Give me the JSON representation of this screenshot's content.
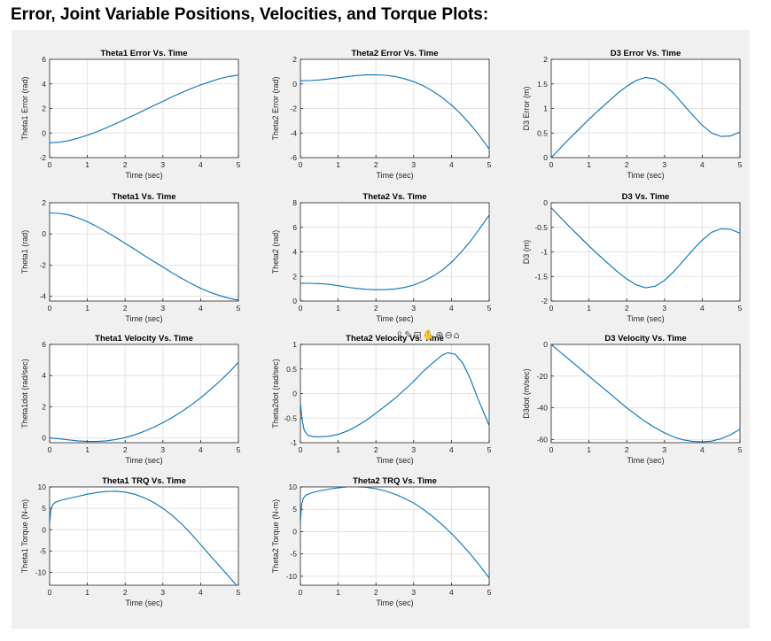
{
  "page": {
    "title": "Error, Joint Variable Positions, Velocities, and Torque Plots:"
  },
  "style": {
    "line_color": "#0072bd",
    "panel_bg": "#f0f0f0",
    "axes_bg": "#ffffff",
    "grid_color": "#e3e3e3"
  },
  "toolbar": {
    "icons": [
      {
        "name": "export-icon",
        "glyph": "⇪"
      },
      {
        "name": "brush-icon",
        "glyph": "✎"
      },
      {
        "name": "datatip-icon",
        "glyph": "⊟"
      },
      {
        "name": "pan-icon",
        "glyph": "✋"
      },
      {
        "name": "zoom-in-icon",
        "glyph": "⊕"
      },
      {
        "name": "zoom-out-icon",
        "glyph": "⊖"
      },
      {
        "name": "home-icon",
        "glyph": "⌂"
      }
    ]
  },
  "chart_data": [
    {
      "id": "theta1-error",
      "type": "line",
      "title": "Theta1 Error Vs. Time",
      "xlabel": "Time (sec)",
      "ylabel": "Theta1 Error (rad)",
      "xlim": [
        0,
        5
      ],
      "ylim": [
        -2,
        6
      ],
      "xticks": [
        0,
        1,
        2,
        3,
        4,
        5
      ],
      "yticks": [
        -2,
        0,
        2,
        4,
        6
      ],
      "grid": true,
      "x": [
        0,
        0.25,
        0.5,
        0.75,
        1,
        1.25,
        1.5,
        1.75,
        2,
        2.25,
        2.5,
        2.75,
        3,
        3.25,
        3.5,
        3.75,
        4,
        4.25,
        4.5,
        4.75,
        5
      ],
      "y": [
        -0.8,
        -0.75,
        -0.62,
        -0.42,
        -0.18,
        0.1,
        0.42,
        0.76,
        1.12,
        1.48,
        1.85,
        2.22,
        2.58,
        2.95,
        3.3,
        3.62,
        3.92,
        4.18,
        4.42,
        4.6,
        4.72
      ]
    },
    {
      "id": "theta2-error",
      "type": "line",
      "title": "Theta2 Error Vs. Time",
      "xlabel": "Time (sec)",
      "ylabel": "Theta2 Error (rad)",
      "xlim": [
        0,
        5
      ],
      "ylim": [
        -6,
        2
      ],
      "xticks": [
        0,
        1,
        2,
        3,
        4,
        5
      ],
      "yticks": [
        -6,
        -4,
        -2,
        0,
        2
      ],
      "grid": true,
      "x": [
        0,
        0.25,
        0.5,
        0.75,
        1,
        1.25,
        1.5,
        1.75,
        2,
        2.25,
        2.5,
        2.75,
        3,
        3.25,
        3.5,
        3.75,
        4,
        4.25,
        4.5,
        4.75,
        5
      ],
      "y": [
        0.25,
        0.27,
        0.32,
        0.4,
        0.5,
        0.6,
        0.68,
        0.73,
        0.74,
        0.7,
        0.6,
        0.43,
        0.18,
        -0.15,
        -0.58,
        -1.1,
        -1.72,
        -2.45,
        -3.3,
        -4.25,
        -5.3
      ]
    },
    {
      "id": "d3-error",
      "type": "line",
      "title": "D3 Error Vs. Time",
      "xlabel": "Time (sec)",
      "ylabel": "D3 Error (m)",
      "xlim": [
        0,
        5
      ],
      "ylim": [
        0,
        2
      ],
      "xticks": [
        0,
        1,
        2,
        3,
        4,
        5
      ],
      "yticks": [
        0,
        0.5,
        1,
        1.5,
        2
      ],
      "grid": true,
      "x": [
        0,
        0.25,
        0.5,
        0.75,
        1,
        1.25,
        1.5,
        1.75,
        2,
        2.25,
        2.5,
        2.75,
        3,
        3.25,
        3.5,
        3.75,
        4,
        4.25,
        4.5,
        4.75,
        5
      ],
      "y": [
        0,
        0.2,
        0.4,
        0.59,
        0.78,
        0.96,
        1.13,
        1.3,
        1.45,
        1.57,
        1.63,
        1.6,
        1.48,
        1.3,
        1.08,
        0.86,
        0.66,
        0.5,
        0.43,
        0.44,
        0.52
      ]
    },
    {
      "id": "theta1-pos",
      "type": "line",
      "title": "Theta1 Vs. Time",
      "xlabel": "Time (sec)",
      "ylabel": "Theta1 (rad)",
      "xlim": [
        0,
        5
      ],
      "ylim": [
        -4.3,
        2
      ],
      "xticks": [
        0,
        1,
        2,
        3,
        4,
        5
      ],
      "yticks": [
        -4,
        -2,
        0,
        2
      ],
      "grid": true,
      "x": [
        0,
        0.25,
        0.5,
        0.75,
        1,
        1.25,
        1.5,
        1.75,
        2,
        2.25,
        2.5,
        2.75,
        3,
        3.25,
        3.5,
        3.75,
        4,
        4.25,
        4.5,
        4.75,
        5
      ],
      "y": [
        1.35,
        1.32,
        1.22,
        1.03,
        0.78,
        0.48,
        0.14,
        -0.22,
        -0.6,
        -0.98,
        -1.37,
        -1.75,
        -2.12,
        -2.5,
        -2.85,
        -3.18,
        -3.48,
        -3.74,
        -3.95,
        -4.12,
        -4.25
      ]
    },
    {
      "id": "theta2-pos",
      "type": "line",
      "title": "Theta2 Vs. Time",
      "xlabel": "Time (sec)",
      "ylabel": "Theta2 (rad)",
      "xlim": [
        0,
        5
      ],
      "ylim": [
        0,
        8
      ],
      "xticks": [
        0,
        1,
        2,
        3,
        4,
        5
      ],
      "yticks": [
        0,
        2,
        4,
        6,
        8
      ],
      "grid": true,
      "x": [
        0,
        0.25,
        0.5,
        0.75,
        1,
        1.25,
        1.5,
        1.75,
        2,
        2.25,
        2.5,
        2.75,
        3,
        3.25,
        3.5,
        3.75,
        4,
        4.25,
        4.5,
        4.75,
        5
      ],
      "y": [
        1.45,
        1.44,
        1.42,
        1.36,
        1.25,
        1.12,
        1.02,
        0.95,
        0.92,
        0.93,
        0.98,
        1.1,
        1.3,
        1.6,
        2.0,
        2.5,
        3.15,
        3.95,
        4.85,
        5.9,
        7.0
      ]
    },
    {
      "id": "d3-pos",
      "type": "line",
      "title": "D3 Vs. Time",
      "xlabel": "Time (sec)",
      "ylabel": "D3 (m)",
      "xlim": [
        0,
        5
      ],
      "ylim": [
        -2,
        0
      ],
      "xticks": [
        0,
        1,
        2,
        3,
        4,
        5
      ],
      "yticks": [
        -2,
        -1.5,
        -1,
        -0.5,
        0
      ],
      "grid": true,
      "x": [
        0,
        0.25,
        0.5,
        0.75,
        1,
        1.25,
        1.5,
        1.75,
        2,
        2.25,
        2.5,
        2.75,
        3,
        3.25,
        3.5,
        3.75,
        4,
        4.25,
        4.5,
        4.75,
        5
      ],
      "y": [
        -0.1,
        -0.3,
        -0.5,
        -0.69,
        -0.88,
        -1.06,
        -1.23,
        -1.4,
        -1.55,
        -1.67,
        -1.73,
        -1.7,
        -1.58,
        -1.4,
        -1.18,
        -0.96,
        -0.76,
        -0.6,
        -0.53,
        -0.54,
        -0.62
      ]
    },
    {
      "id": "theta1-vel",
      "type": "line",
      "title": "Theta1 Velocity Vs. Time",
      "xlabel": "Time (sec)",
      "ylabel": "Theta1dot (rad/sec)",
      "xlim": [
        0,
        5
      ],
      "ylim": [
        -0.3,
        6
      ],
      "xticks": [
        0,
        1,
        2,
        3,
        4,
        5
      ],
      "yticks": [
        0,
        2,
        4,
        6
      ],
      "grid": true,
      "x": [
        0,
        0.25,
        0.5,
        0.75,
        1,
        1.25,
        1.5,
        1.75,
        2,
        2.25,
        2.5,
        2.75,
        3,
        3.25,
        3.5,
        3.75,
        4,
        4.25,
        4.5,
        4.75,
        5
      ],
      "y": [
        0,
        -0.05,
        -0.12,
        -0.18,
        -0.22,
        -0.22,
        -0.18,
        -0.1,
        0.03,
        0.2,
        0.42,
        0.68,
        0.98,
        1.32,
        1.7,
        2.12,
        2.58,
        3.08,
        3.62,
        4.2,
        4.85
      ]
    },
    {
      "id": "theta2-vel",
      "type": "line",
      "title": "Theta2 Velocity Vs. Time",
      "xlabel": "Time (sec)",
      "ylabel": "Theta2dot (rad/sec)",
      "xlim": [
        0,
        5
      ],
      "ylim": [
        -1,
        1
      ],
      "xticks": [
        0,
        1,
        2,
        3,
        4,
        5
      ],
      "yticks": [
        -1,
        -0.5,
        0,
        0.5,
        1
      ],
      "grid": true,
      "x": [
        0,
        0.05,
        0.1,
        0.2,
        0.35,
        0.5,
        0.75,
        1,
        1.25,
        1.5,
        1.75,
        2,
        2.25,
        2.5,
        2.75,
        3,
        3.25,
        3.5,
        3.75,
        3.9,
        4.1,
        4.3,
        4.5,
        4.7,
        5
      ],
      "y": [
        -0.2,
        -0.55,
        -0.75,
        -0.85,
        -0.88,
        -0.88,
        -0.87,
        -0.83,
        -0.76,
        -0.66,
        -0.54,
        -0.4,
        -0.25,
        -0.1,
        0.07,
        0.25,
        0.45,
        0.62,
        0.78,
        0.83,
        0.8,
        0.62,
        0.3,
        -0.1,
        -0.65
      ]
    },
    {
      "id": "d3-vel",
      "type": "line",
      "title": "D3 Velocity Vs. Time",
      "xlabel": "Time (sec)",
      "ylabel": "D3dot (m/sec)",
      "xlim": [
        0,
        5
      ],
      "ylim": [
        -62,
        0
      ],
      "xticks": [
        0,
        1,
        2,
        3,
        4,
        5
      ],
      "yticks": [
        -60,
        -40,
        -20,
        0
      ],
      "grid": true,
      "x": [
        0,
        0.25,
        0.5,
        0.75,
        1,
        1.25,
        1.5,
        1.75,
        2,
        2.25,
        2.5,
        2.75,
        3,
        3.25,
        3.5,
        3.75,
        4,
        4.25,
        4.5,
        4.75,
        5
      ],
      "y": [
        0,
        -5,
        -10,
        -15,
        -20,
        -25,
        -30,
        -35,
        -40,
        -44.5,
        -48.8,
        -52.5,
        -55.8,
        -58.4,
        -60.2,
        -61.2,
        -61.5,
        -61.0,
        -59.5,
        -57.0,
        -53.5
      ]
    },
    {
      "id": "theta1-trq",
      "type": "line",
      "title": "Theta1 TRQ Vs. Time",
      "xlabel": "Time (sec)",
      "ylabel": "Theta1 Torque (N-m)",
      "xlim": [
        0,
        5
      ],
      "ylim": [
        -13,
        10
      ],
      "xticks": [
        0,
        1,
        2,
        3,
        4,
        5
      ],
      "yticks": [
        -10,
        -5,
        0,
        5,
        10
      ],
      "grid": true,
      "x": [
        0,
        0.03,
        0.08,
        0.15,
        0.3,
        0.5,
        0.75,
        1,
        1.25,
        1.5,
        1.75,
        2,
        2.25,
        2.5,
        2.75,
        3,
        3.25,
        3.5,
        3.75,
        4,
        4.25,
        4.5,
        4.75,
        5
      ],
      "y": [
        1.5,
        4.5,
        5.8,
        6.4,
        6.9,
        7.3,
        7.8,
        8.3,
        8.7,
        8.95,
        9.0,
        8.8,
        8.3,
        7.5,
        6.4,
        5.0,
        3.3,
        1.3,
        -1.0,
        -3.5,
        -6.0,
        -8.5,
        -11.0,
        -13.5
      ]
    },
    {
      "id": "theta2-trq",
      "type": "line",
      "title": "Theta2 TRQ Vs. Time",
      "xlabel": "Time (sec)",
      "ylabel": "Theta2 Torque (N-m)",
      "xlim": [
        0,
        5
      ],
      "ylim": [
        -12,
        10
      ],
      "xticks": [
        0,
        1,
        2,
        3,
        4,
        5
      ],
      "yticks": [
        -10,
        -5,
        0,
        5,
        10
      ],
      "grid": true,
      "x": [
        0,
        0.03,
        0.08,
        0.15,
        0.3,
        0.5,
        0.75,
        1,
        1.25,
        1.5,
        1.75,
        2,
        2.25,
        2.5,
        2.75,
        3,
        3.25,
        3.5,
        3.75,
        4,
        4.25,
        4.5,
        4.75,
        5
      ],
      "y": [
        2.0,
        6.0,
        7.5,
        8.2,
        8.7,
        9.1,
        9.5,
        9.8,
        10.0,
        10.0,
        9.9,
        9.6,
        9.1,
        8.4,
        7.5,
        6.4,
        5.0,
        3.4,
        1.6,
        -0.4,
        -2.6,
        -5.0,
        -7.6,
        -10.4
      ]
    }
  ]
}
